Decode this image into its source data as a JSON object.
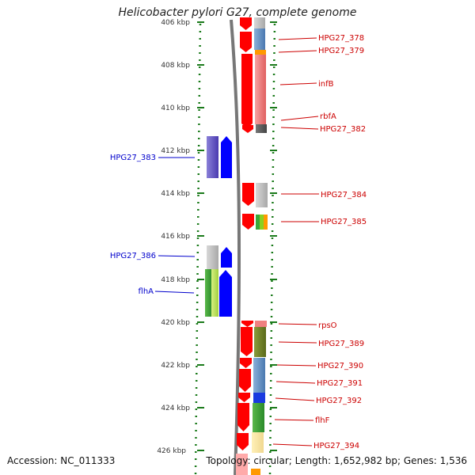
{
  "title": "Helicobacter pylori G27, complete genome",
  "accession_label": "Accession: NC_011333",
  "topology_label": "Topology: circular; Length: 1,652,982 bp; Genes: 1,536",
  "axis": {
    "ticks": [
      "406 kbp",
      "408 kbp",
      "410 kbp",
      "412 kbp",
      "414 kbp",
      "416 kbp",
      "418 kbp",
      "420 kbp",
      "422 kbp",
      "424 kbp",
      "426 kbp"
    ]
  },
  "genes_forward": [
    {
      "name": "HPG27_378"
    },
    {
      "name": "HPG27_379"
    },
    {
      "name": "infB"
    },
    {
      "name": "rbfA"
    },
    {
      "name": "HPG27_382"
    },
    {
      "name": "HPG27_384"
    },
    {
      "name": "HPG27_385"
    },
    {
      "name": "rpsO"
    },
    {
      "name": "HPG27_389"
    },
    {
      "name": "HPG27_390"
    },
    {
      "name": "HPG27_391"
    },
    {
      "name": "HPG27_392"
    },
    {
      "name": "flhF"
    },
    {
      "name": "HPG27_394"
    }
  ],
  "genes_reverse": [
    {
      "name": "HPG27_383"
    },
    {
      "name": "HPG27_386"
    },
    {
      "name": "flhA"
    }
  ],
  "colors": {
    "strand_red": "#ff0000",
    "strand_blue": "#0000ff",
    "label_red": "#cc0000",
    "label_blue": "#0000cc",
    "tick_green": "#1a7a1a"
  }
}
